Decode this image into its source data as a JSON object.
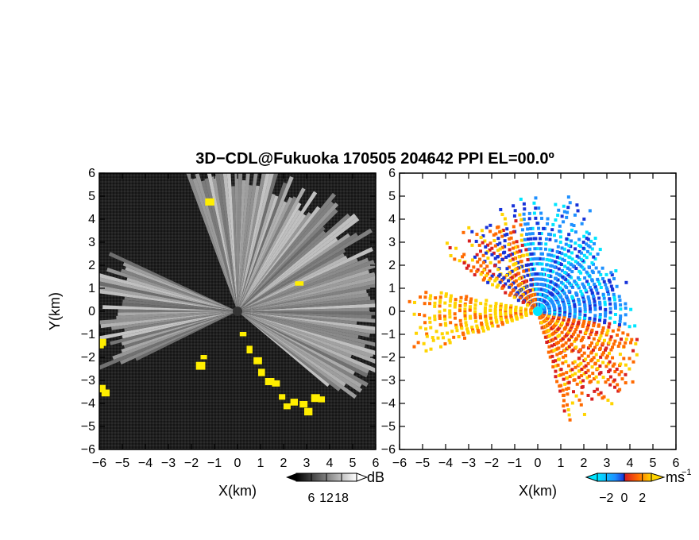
{
  "chart_data": {
    "title": "3D−CDL@Fukuoka 170505 204642 PPI EL=00.0º",
    "panels": [
      {
        "type": "heatmap",
        "quantity": "SNR",
        "xlabel": "X(km)",
        "ylabel": "Y(km)",
        "xlim": [
          -6,
          6
        ],
        "ylim": [
          -6,
          6
        ],
        "xticks": [
          "−6",
          "−5",
          "−4",
          "−3",
          "−2",
          "−1",
          "0",
          "1",
          "2",
          "3",
          "4",
          "5",
          "6"
        ],
        "yticks": [
          "−6",
          "−5",
          "−4",
          "−3",
          "−2",
          "−1",
          "0",
          "1",
          "2",
          "3",
          "4",
          "5",
          "6"
        ],
        "colorbar": {
          "unit": "dB",
          "ticks": [
            "6",
            "12",
            "18"
          ],
          "range": [
            0,
            24
          ],
          "colors": [
            "#000000",
            "#ffffff"
          ],
          "extend": "both"
        },
        "overlay_color": "#ffee00"
      },
      {
        "type": "heatmap",
        "quantity": "radial velocity",
        "xlabel": "X(km)",
        "ylabel": "",
        "xlim": [
          -6,
          6
        ],
        "ylim": [
          -6,
          6
        ],
        "xticks": [
          "−6",
          "−5",
          "−4",
          "−3",
          "−2",
          "−1",
          "0",
          "1",
          "2",
          "3",
          "4",
          "5",
          "6"
        ],
        "yticks": [
          "−6",
          "−5",
          "−4",
          "−3",
          "−2",
          "−1",
          "0",
          "1",
          "2",
          "3",
          "4",
          "5",
          "6"
        ],
        "colorbar": {
          "unit": "ms",
          "unit_exponent": "−1",
          "ticks": [
            "−2",
            "0",
            "2"
          ],
          "range": [
            -3,
            3
          ],
          "colors": [
            "#00e5ff",
            "#1e90ff",
            "#1733d9",
            "#d92020",
            "#ff6a00",
            "#ffd400"
          ],
          "extend": "both"
        }
      }
    ]
  }
}
